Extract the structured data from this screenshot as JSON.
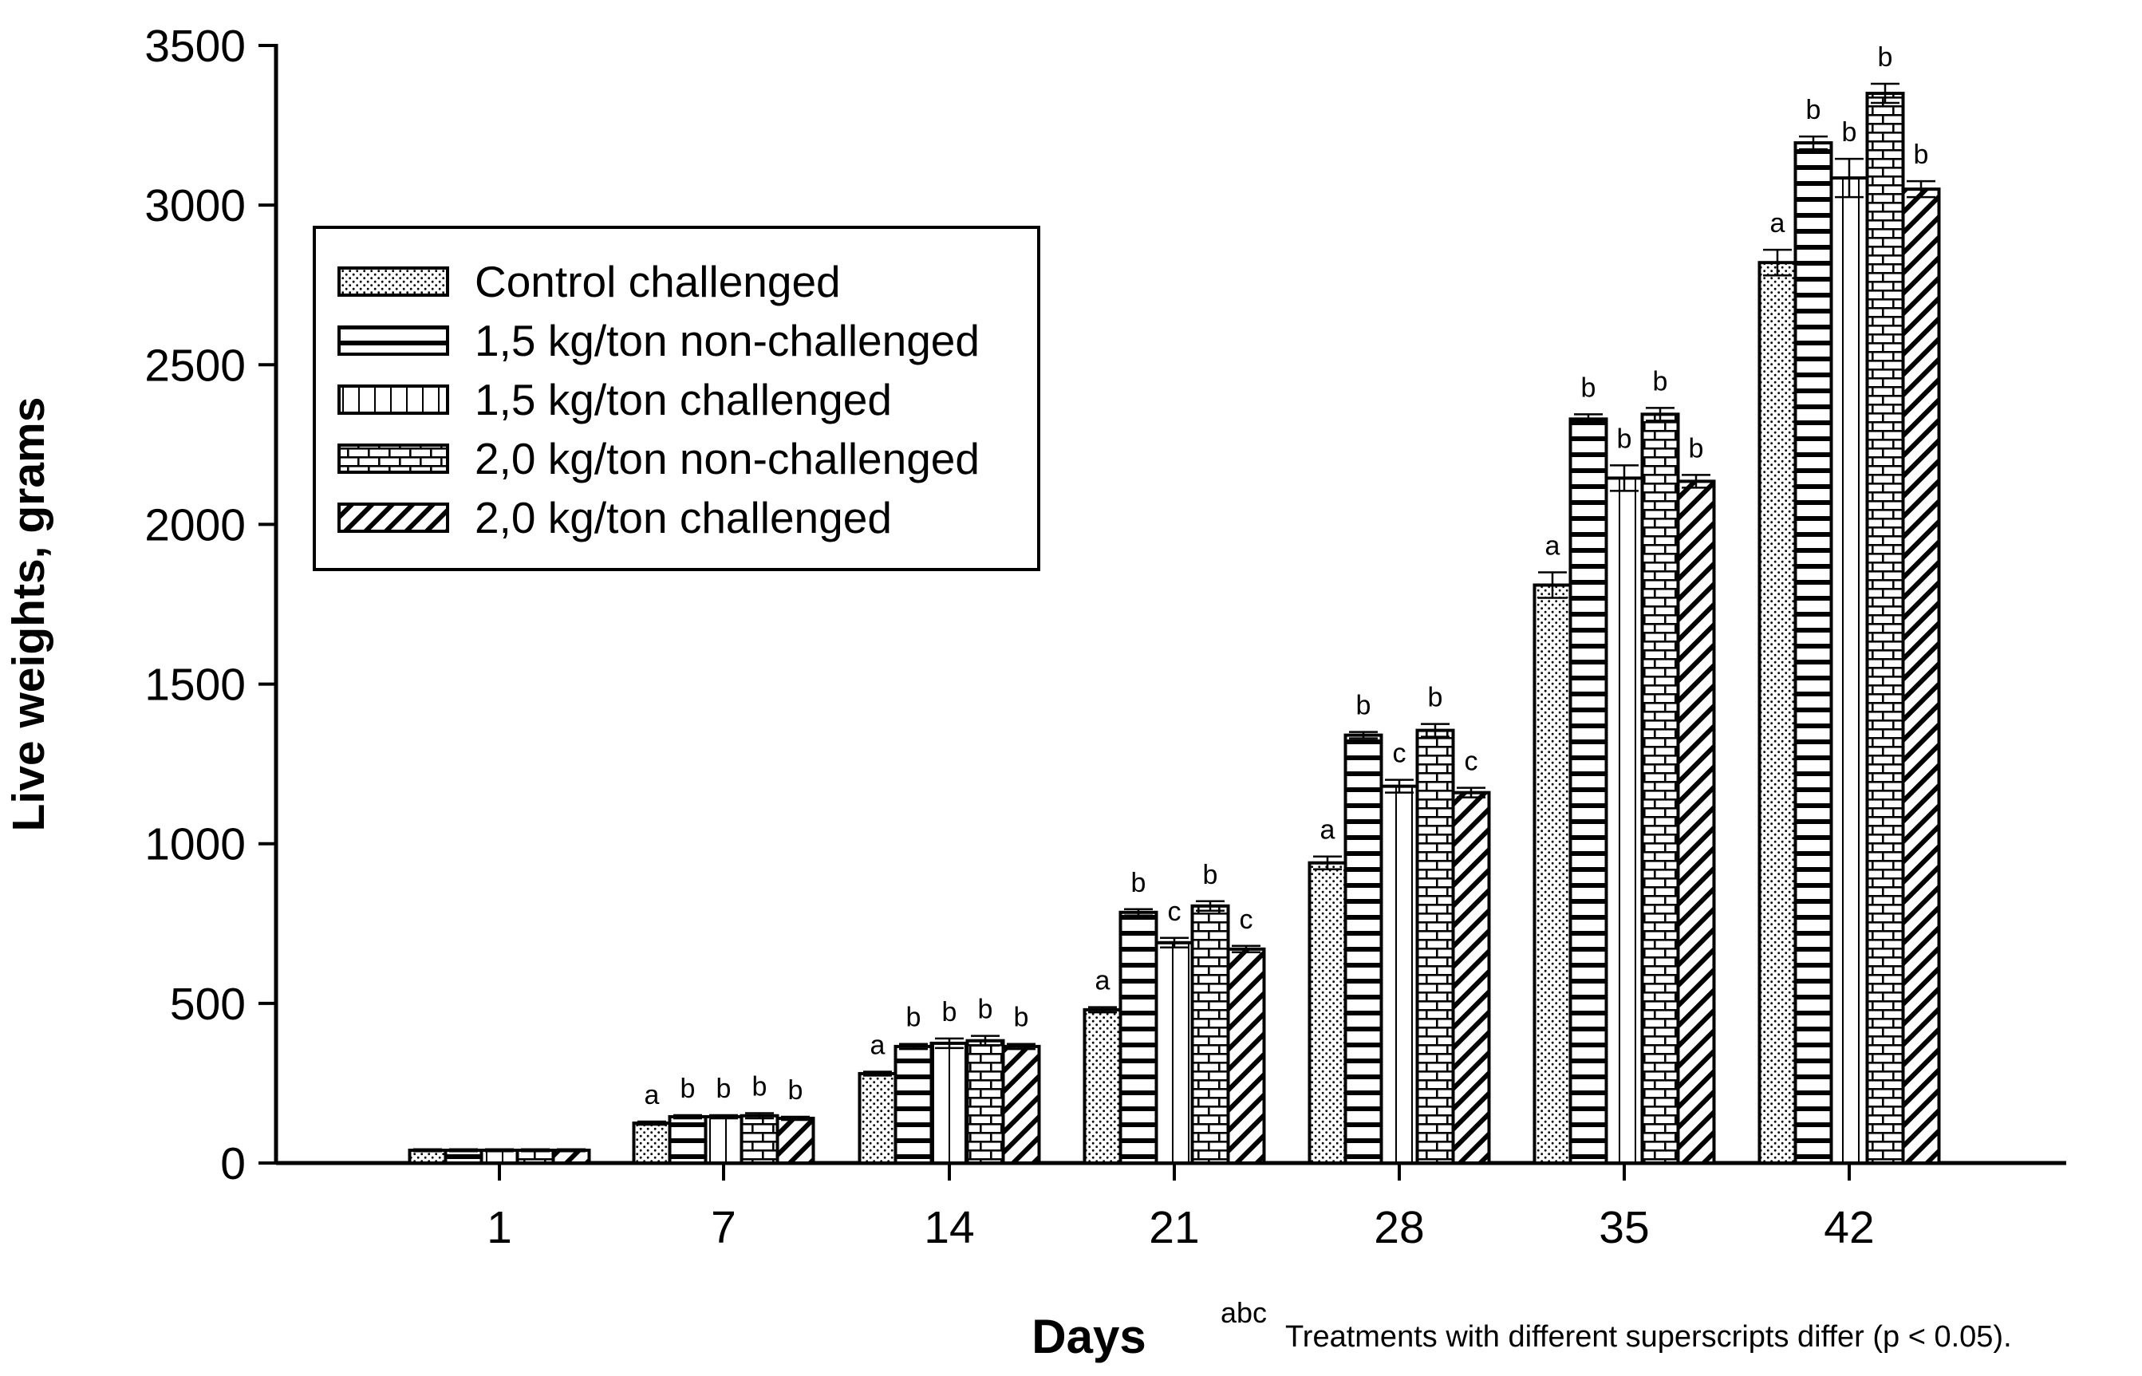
{
  "chart_data": {
    "type": "bar",
    "title": "",
    "xlabel": "Days",
    "ylabel": "Live weights, grams",
    "ylim": [
      0,
      3500
    ],
    "yticks": [
      0,
      500,
      1000,
      1500,
      2000,
      2500,
      3000,
      3500
    ],
    "grid": false,
    "legend_position": "top-left",
    "categories": [
      "1",
      "7",
      "14",
      "21",
      "28",
      "35",
      "42"
    ],
    "series": [
      {
        "name": "Control challenged",
        "pattern": "dots",
        "values": [
          40,
          125,
          280,
          480,
          940,
          1810,
          2820
        ],
        "errors": [
          3,
          5,
          6,
          8,
          20,
          40,
          40
        ],
        "letters": [
          "",
          "a",
          "a",
          "a",
          "a",
          "a",
          "a"
        ]
      },
      {
        "name": "1,5 kg/ton non-challenged",
        "pattern": "thick-horizontal",
        "values": [
          40,
          145,
          365,
          785,
          1340,
          2330,
          3195
        ],
        "errors": [
          3,
          5,
          8,
          10,
          10,
          15,
          20
        ],
        "letters": [
          "",
          "b",
          "b",
          "b",
          "b",
          "b",
          "b"
        ]
      },
      {
        "name": "1,5 kg/ton challenged",
        "pattern": "vertical",
        "values": [
          40,
          145,
          375,
          690,
          1180,
          2145,
          3085
        ],
        "errors": [
          3,
          5,
          15,
          15,
          20,
          40,
          60
        ],
        "letters": [
          "",
          "b",
          "b",
          "c",
          "c",
          "b",
          "b"
        ]
      },
      {
        "name": "2,0 kg/ton non-challenged",
        "pattern": "brick",
        "values": [
          40,
          148,
          383,
          805,
          1355,
          2345,
          3350
        ],
        "errors": [
          3,
          8,
          15,
          15,
          20,
          20,
          30
        ],
        "letters": [
          "",
          "b",
          "b",
          "b",
          "b",
          "b",
          "b"
        ]
      },
      {
        "name": "2,0 kg/ton challenged",
        "pattern": "diagonal",
        "values": [
          40,
          140,
          365,
          670,
          1160,
          2135,
          3050
        ],
        "errors": [
          3,
          5,
          8,
          10,
          15,
          20,
          25
        ],
        "letters": [
          "",
          "b",
          "b",
          "c",
          "c",
          "b",
          "b"
        ]
      }
    ],
    "footnote": {
      "superscript": "abc",
      "text": "Treatments with different superscripts differ (p < 0.05)."
    }
  }
}
